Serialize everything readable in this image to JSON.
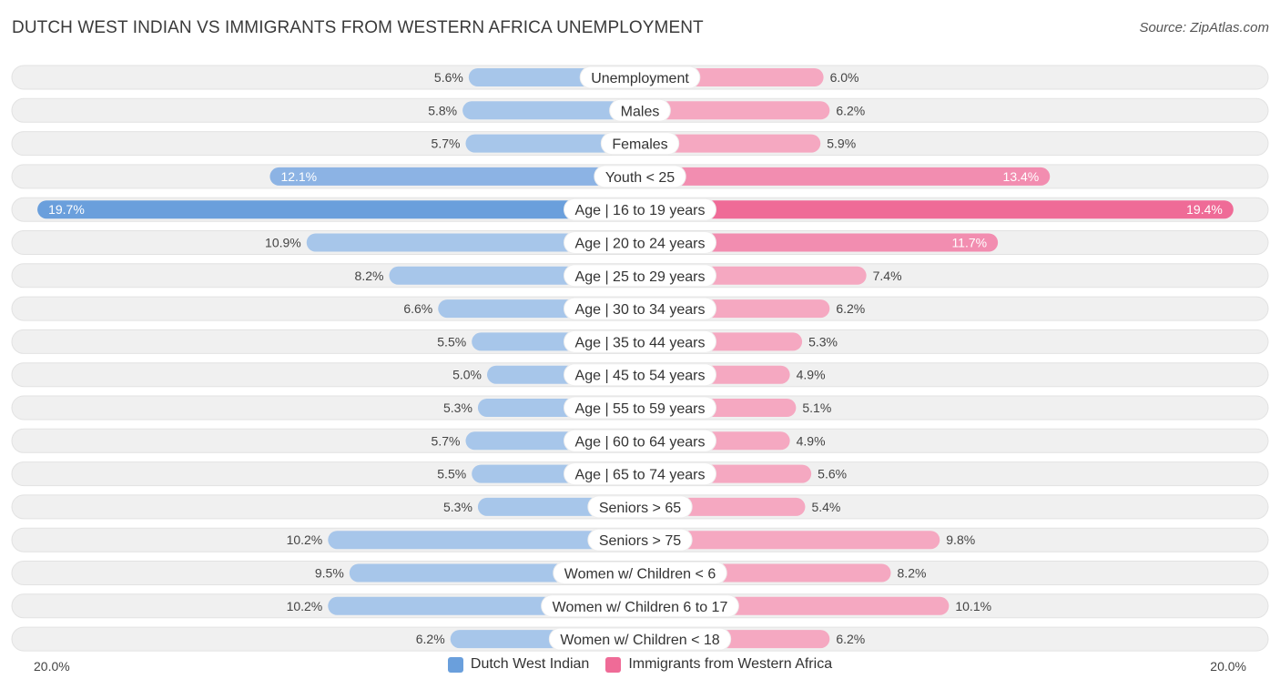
{
  "header": {
    "title": "DUTCH WEST INDIAN VS IMMIGRANTS FROM WESTERN AFRICA UNEMPLOYMENT",
    "source": "Source: ZipAtlas.com"
  },
  "colors": {
    "left_bar": "#a7c6ea",
    "left_bar_strong": "#6a9fdc",
    "right_bar": "#f5a8c1",
    "right_bar_strong": "#ef6b97",
    "track": "#f0f0f0"
  },
  "chart_data": {
    "type": "bar",
    "orientation": "horizontal-diverging",
    "title": "DUTCH WEST INDIAN VS IMMIGRANTS FROM WESTERN AFRICA UNEMPLOYMENT",
    "axis": {
      "max": 20.0,
      "left_label": "20.0%",
      "right_label": "20.0%"
    },
    "categories": [
      "Unemployment",
      "Males",
      "Females",
      "Youth < 25",
      "Age | 16 to 19 years",
      "Age | 20 to 24 years",
      "Age | 25 to 29 years",
      "Age | 30 to 34 years",
      "Age | 35 to 44 years",
      "Age | 45 to 54 years",
      "Age | 55 to 59 years",
      "Age | 60 to 64 years",
      "Age | 65 to 74 years",
      "Seniors > 65",
      "Seniors > 75",
      "Women w/ Children < 6",
      "Women w/ Children 6 to 17",
      "Women w/ Children < 18"
    ],
    "series": [
      {
        "name": "Dutch West Indian",
        "values": [
          5.6,
          5.8,
          5.7,
          12.1,
          19.7,
          10.9,
          8.2,
          6.6,
          5.5,
          5.0,
          5.3,
          5.7,
          5.5,
          5.3,
          10.2,
          9.5,
          10.2,
          6.2
        ],
        "labels": [
          "5.6%",
          "5.8%",
          "5.7%",
          "12.1%",
          "19.7%",
          "10.9%",
          "8.2%",
          "6.6%",
          "5.5%",
          "5.0%",
          "5.3%",
          "5.7%",
          "5.5%",
          "5.3%",
          "10.2%",
          "9.5%",
          "10.2%",
          "6.2%"
        ]
      },
      {
        "name": "Immigrants from Western Africa",
        "values": [
          6.0,
          6.2,
          5.9,
          13.4,
          19.4,
          11.7,
          7.4,
          6.2,
          5.3,
          4.9,
          5.1,
          4.9,
          5.6,
          5.4,
          9.8,
          8.2,
          10.1,
          6.2
        ],
        "labels": [
          "6.0%",
          "6.2%",
          "5.9%",
          "13.4%",
          "19.4%",
          "11.7%",
          "7.4%",
          "6.2%",
          "5.3%",
          "4.9%",
          "5.1%",
          "4.9%",
          "5.6%",
          "5.4%",
          "9.8%",
          "8.2%",
          "10.1%",
          "6.2%"
        ]
      }
    ],
    "legend": [
      "Dutch West Indian",
      "Immigrants from Western Africa"
    ],
    "legend_position": "bottom-center"
  }
}
